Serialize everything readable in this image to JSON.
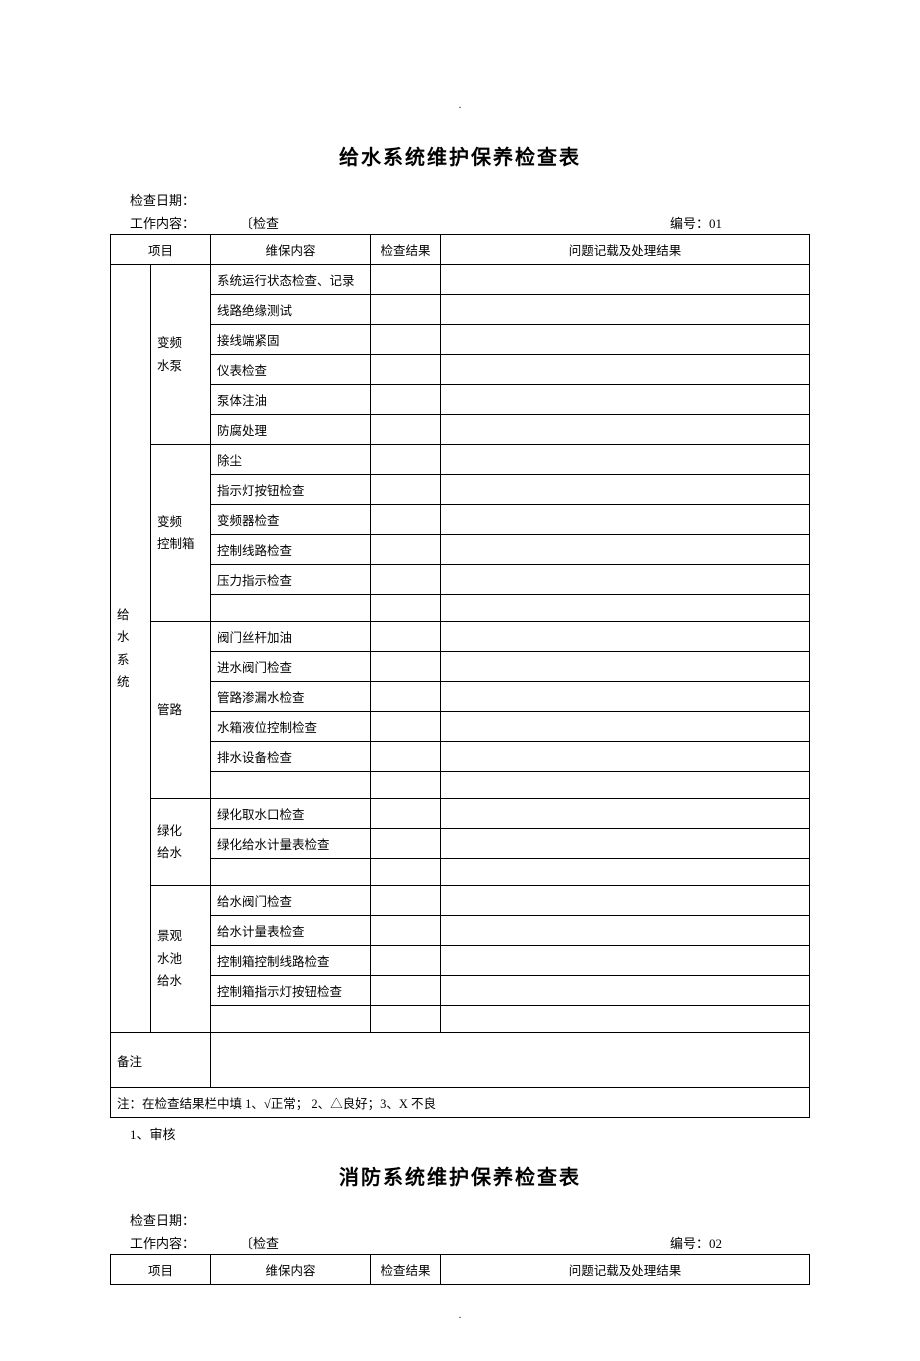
{
  "page_marker": ".",
  "doc1": {
    "title": "给水系统维护保养检查表",
    "check_date_label": "检查日期：",
    "work_content_label": "工作内容：",
    "work_check_text": "〔检查",
    "serial_label": "编号：01",
    "columns": {
      "project": "项目",
      "content": "维保内容",
      "result": "检查结果",
      "issue": "问题记载及处理结果"
    },
    "system_label": "给水系统",
    "groups": [
      {
        "name": "变频水泵",
        "items": [
          "系统运行状态检查、记录",
          "线路绝缘测试",
          "接线端紧固",
          "仪表检查",
          "泵体注油",
          "防腐处理"
        ]
      },
      {
        "name": "变频控制箱",
        "items": [
          "除尘",
          "指示灯按钮检查",
          "变频器检查",
          "控制线路检查",
          "压力指示检查",
          ""
        ]
      },
      {
        "name": "管路",
        "items": [
          "阀门丝杆加油",
          "进水阀门检查",
          "管路渗漏水检查",
          "水箱液位控制检查",
          "排水设备检查",
          ""
        ]
      },
      {
        "name": "绿化给水",
        "items": [
          "绿化取水口检查",
          "绿化给水计量表检查",
          ""
        ]
      },
      {
        "name": "景观水池给水",
        "items": [
          "给水阀门检查",
          "给水计量表检查",
          "控制箱控制线路检查",
          "控制箱指示灯按钮检查",
          ""
        ]
      }
    ],
    "remark_label": "备注",
    "note_text": "注：在检查结果栏中填 1、√正常； 2、△良好；3、X 不良",
    "footnote": "1、审核"
  },
  "doc2": {
    "title": "消防系统维护保养检查表",
    "check_date_label": "检查日期：",
    "work_content_label": "工作内容：",
    "work_check_text": "〔检查",
    "serial_label": "编号：02",
    "columns": {
      "project": "项目",
      "content": "维保内容",
      "result": "检查结果",
      "issue": "问题记载及处理结果"
    }
  },
  "style": {
    "border_color": "#000000",
    "background": "#ffffff",
    "text_color": "#000000",
    "title_fontsize": 20,
    "cell_fontsize": 12.5,
    "font_family_title": "SimHei",
    "font_family_body": "SimSun"
  }
}
